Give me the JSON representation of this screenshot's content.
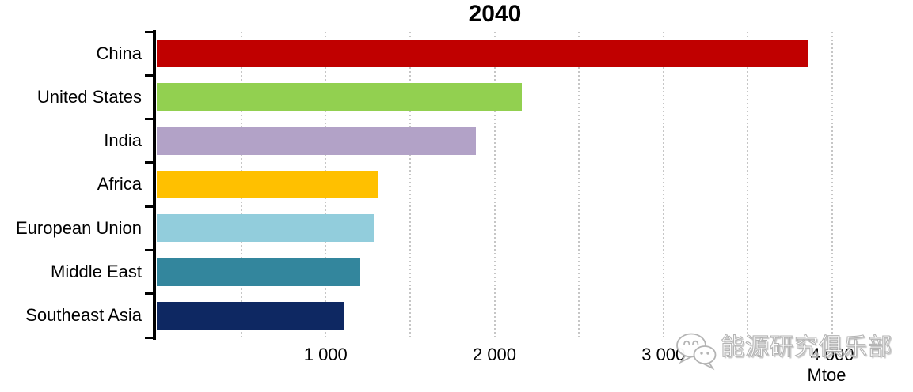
{
  "title": "2040",
  "axis": {
    "unit_label": "Mtoe",
    "tick_labels": [
      "1 000",
      "2 000",
      "3 000",
      "4 000"
    ],
    "tick_values": [
      1000,
      2000,
      3000,
      4000
    ]
  },
  "chart_data": {
    "type": "bar",
    "orientation": "horizontal",
    "title": "2040",
    "xlabel": "Mtoe",
    "ylabel": "",
    "categories": [
      "China",
      "United States",
      "India",
      "Africa",
      "European Union",
      "Middle East",
      "Southeast Asia"
    ],
    "values": [
      3860,
      2160,
      1890,
      1310,
      1285,
      1205,
      1110
    ],
    "colors": [
      "#c00000",
      "#92d050",
      "#b2a2c7",
      "#ffc000",
      "#92cddc",
      "#33869d",
      "#0e2862"
    ],
    "xlim": [
      0,
      4000
    ],
    "gridlines": {
      "step": 500,
      "style": "dotted",
      "color": "#c6c6c6"
    },
    "legend": "none"
  },
  "watermark": {
    "icon": "wechat-icon",
    "text": "能源研究俱乐部"
  }
}
